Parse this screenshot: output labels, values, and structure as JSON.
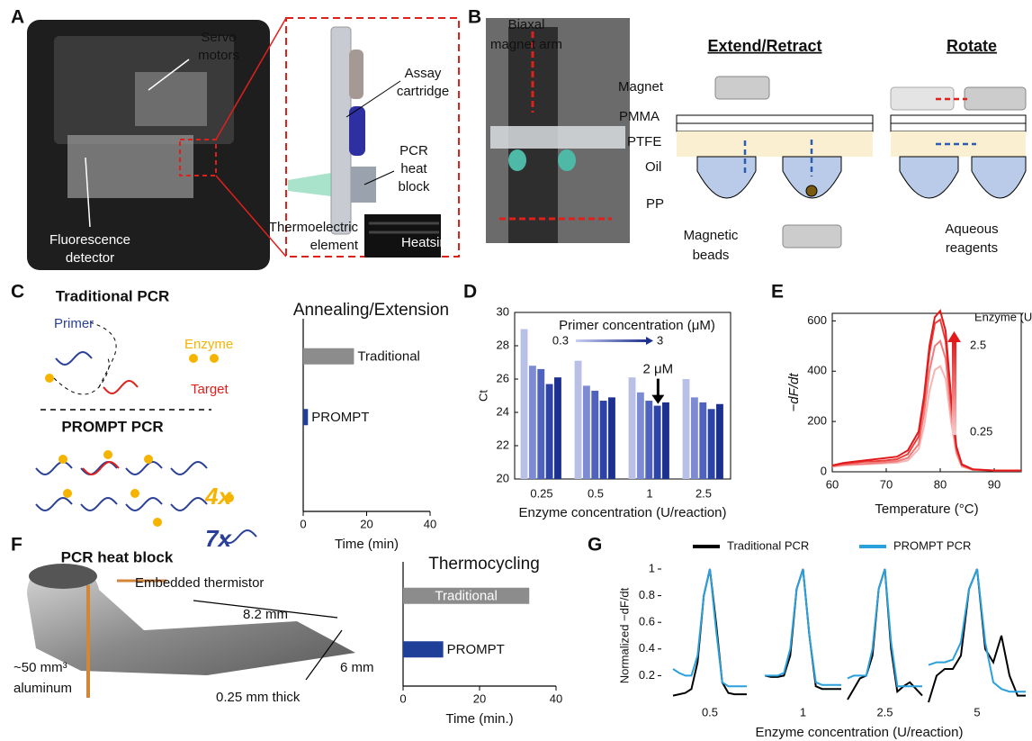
{
  "panels": {
    "A": {
      "letter": "A",
      "servo": [
        "Servo",
        "motors"
      ],
      "detector": [
        "Fluorescence",
        "detector"
      ],
      "cartridge": [
        "Assay",
        "cartridge"
      ],
      "heat_block": [
        "PCR",
        "heat",
        "block"
      ],
      "thermoelectric": [
        "Thermoelectric",
        "element"
      ],
      "heatsink": "Heatsink"
    },
    "B": {
      "letter": "B",
      "magnet_arm": [
        "Biaxal",
        "magnet arm"
      ],
      "extend": "Extend/Retract",
      "rotate": "Rotate",
      "magnet": "Magnet",
      "pmma": "PMMA",
      "ptfe": "PTFE",
      "oil": "Oil",
      "pp": "PP",
      "beads": [
        "Magnetic",
        "beads"
      ],
      "reagents": [
        "Aqueous",
        "reagents"
      ]
    },
    "C": {
      "letter": "C",
      "traditional": "Traditional PCR",
      "primer": "Primer",
      "enzyme": "Enzyme",
      "target": "Target",
      "prompt": "PROMPT PCR",
      "x4": "4x",
      "x7": "7x"
    },
    "D": {
      "letter": "D"
    },
    "E": {
      "letter": "E"
    },
    "F": {
      "letter": "F",
      "title": "PCR heat block",
      "thermistor": "Embedded thermistor",
      "length": "8.2 mm",
      "volume": [
        "~50 mm³",
        "aluminum"
      ],
      "thickness": "0.25 mm thick",
      "width": "6 mm"
    },
    "G": {
      "letter": "G"
    }
  },
  "chart_data": [
    {
      "type": "hbar",
      "title": "Annealing/Extension",
      "categories": [
        "Traditional",
        "PROMPT"
      ],
      "values": [
        16,
        1.5
      ],
      "colors": [
        "#8c8c8c",
        "#1f3f99"
      ],
      "xlim": [
        0,
        40
      ],
      "xticks": [
        0,
        20,
        40
      ],
      "xlabel": "Time (min)"
    },
    {
      "type": "bar",
      "ylabel": "Ct",
      "xlabel": "Enzyme concentration (U/reaction)",
      "categories": [
        "0.25",
        "0.5",
        "1",
        "2.5"
      ],
      "series": [
        {
          "color": "#b9c0e6",
          "values": [
            29,
            27.1,
            26.1,
            26
          ]
        },
        {
          "color": "#7d8bd2",
          "values": [
            26.8,
            25.6,
            25.2,
            24.9
          ]
        },
        {
          "color": "#4f62bf",
          "values": [
            26.6,
            25.3,
            24.7,
            24.6
          ]
        },
        {
          "color": "#2c43a8",
          "values": [
            25.7,
            24.7,
            24.4,
            24.2
          ]
        },
        {
          "color": "#1c318f",
          "values": [
            26.1,
            24.9,
            24.6,
            24.5
          ]
        }
      ],
      "ylim": [
        20,
        30
      ],
      "yticks": [
        20,
        22,
        24,
        26,
        28,
        30
      ],
      "legend_title": "Primer concentration (μM)",
      "legend_range": [
        "0.3",
        "3"
      ],
      "annotation": "2 μM"
    },
    {
      "type": "line",
      "ylabel": "−dF/dt",
      "xlabel": "Temperature (°C)",
      "x": [
        60,
        62,
        64,
        66,
        68,
        70,
        72,
        74,
        76,
        77,
        78,
        79,
        80,
        81,
        82,
        83,
        84,
        86,
        90,
        95
      ],
      "series": [
        {
          "color": "#e31a1c",
          "values": [
            25,
            35,
            40,
            45,
            50,
            55,
            60,
            85,
            160,
            300,
            500,
            615,
            640,
            560,
            300,
            100,
            30,
            10,
            5,
            5
          ]
        },
        {
          "color": "#e8423f",
          "values": [
            25,
            32,
            36,
            40,
            42,
            45,
            50,
            70,
            140,
            280,
            470,
            590,
            605,
            520,
            280,
            95,
            28,
            10,
            5,
            5
          ]
        },
        {
          "color": "#ef7b7b",
          "values": [
            22,
            28,
            30,
            32,
            35,
            38,
            42,
            55,
            110,
            230,
            400,
            500,
            520,
            450,
            240,
            80,
            25,
            8,
            5,
            5
          ]
        },
        {
          "color": "#f6b4b4",
          "values": [
            20,
            25,
            28,
            30,
            32,
            34,
            36,
            45,
            90,
            180,
            320,
            405,
            420,
            370,
            200,
            70,
            20,
            8,
            5,
            5
          ]
        }
      ],
      "xlim": [
        60,
        95
      ],
      "xticks": [
        60,
        70,
        80,
        90
      ],
      "ylim": [
        0,
        630
      ],
      "yticks": [
        0,
        200,
        400,
        600
      ],
      "legend_title": "Enzyme (U)",
      "legend_range": [
        "2.5",
        "0.25"
      ]
    },
    {
      "type": "hbar",
      "title": "Thermocycling",
      "categories": [
        "Traditional",
        "PROMPT"
      ],
      "values": [
        33,
        10.5
      ],
      "colors": [
        "#8c8c8c",
        "#1f3f99"
      ],
      "xlim": [
        0,
        40
      ],
      "xticks": [
        0,
        20,
        40
      ],
      "xlabel": "Time (min.)"
    },
    {
      "type": "multiples",
      "ylabel": "Normalized −dF/dt",
      "xlabel": "Enzyme concentration (U/reaction)",
      "categories": [
        "0.5",
        "1",
        "2.5",
        "5"
      ],
      "ylim": [
        0,
        1
      ],
      "yticks": [
        0.2,
        0.4,
        0.6,
        0.8,
        1
      ],
      "series": [
        {
          "name": "Traditional PCR",
          "color": "#000000",
          "values": [
            [
              0.05,
              0.06,
              0.07,
              0.1,
              0.3,
              0.8,
              1,
              0.6,
              0.15,
              0.07,
              0.06,
              0.06,
              0.06
            ],
            [
              0.2,
              0.19,
              0.19,
              0.2,
              0.35,
              0.85,
              1,
              0.5,
              0.12,
              0.1,
              0.1,
              0.1,
              0.1
            ],
            [
              0.02,
              0.1,
              0.18,
              0.2,
              0.35,
              0.85,
              1,
              0.4,
              0.08,
              0.12,
              0.15,
              0.1,
              0.05
            ],
            [
              0,
              0.2,
              0.25,
              0.25,
              0.35,
              0.85,
              1,
              0.4,
              0.3,
              0.5,
              0.2,
              0.05,
              0.05
            ]
          ]
        },
        {
          "name": "PROMPT PCR",
          "color": "#2aa0dc",
          "values": [
            [
              0.25,
              0.22,
              0.2,
              0.2,
              0.35,
              0.8,
              1,
              0.55,
              0.15,
              0.12,
              0.12,
              0.12,
              0.12
            ],
            [
              0.2,
              0.2,
              0.2,
              0.22,
              0.4,
              0.85,
              1,
              0.5,
              0.15,
              0.13,
              0.13,
              0.13,
              0.13
            ],
            [
              0.18,
              0.2,
              0.2,
              0.2,
              0.4,
              0.85,
              1,
              0.45,
              0.12,
              0.12,
              0.12,
              0.12,
              0.12
            ],
            [
              0.28,
              0.3,
              0.3,
              0.32,
              0.45,
              0.85,
              1,
              0.45,
              0.15,
              0.1,
              0.08,
              0.08,
              0.08
            ]
          ]
        }
      ]
    }
  ]
}
